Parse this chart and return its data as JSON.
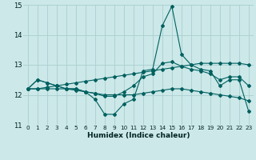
{
  "xlabel": "Humidex (Indice chaleur)",
  "xlim": [
    -0.5,
    23.5
  ],
  "ylim": [
    11,
    15
  ],
  "yticks": [
    11,
    12,
    13,
    14,
    15
  ],
  "xticks": [
    0,
    1,
    2,
    3,
    4,
    5,
    6,
    7,
    8,
    9,
    10,
    11,
    12,
    13,
    14,
    15,
    16,
    17,
    18,
    19,
    20,
    21,
    22,
    23
  ],
  "bg_color": "#cce8e8",
  "grid_color": "#aacfcf",
  "line_color": "#006060",
  "lines": [
    {
      "x": [
        0,
        1,
        2,
        3,
        4,
        5,
        6,
        7,
        8,
        9,
        10,
        11,
        12,
        13,
        14,
        15,
        16,
        17,
        18,
        19,
        20,
        21,
        22,
        23
      ],
      "y": [
        12.2,
        12.5,
        12.4,
        12.3,
        12.2,
        12.2,
        12.1,
        11.85,
        11.35,
        11.35,
        11.7,
        11.85,
        12.8,
        12.85,
        14.3,
        14.95,
        13.35,
        13.0,
        12.85,
        12.8,
        12.3,
        12.5,
        12.5,
        11.45
      ]
    },
    {
      "x": [
        0,
        1,
        2,
        3,
        4,
        5,
        6,
        7,
        8,
        9,
        10,
        11,
        12,
        13,
        14,
        15,
        16,
        17,
        18,
        19,
        20,
        21,
        22,
        23
      ],
      "y": [
        12.2,
        12.5,
        12.4,
        12.3,
        12.2,
        12.2,
        12.1,
        12.05,
        11.95,
        11.95,
        12.1,
        12.3,
        12.6,
        12.7,
        13.05,
        13.1,
        12.95,
        12.85,
        12.8,
        12.7,
        12.5,
        12.6,
        12.6,
        12.3
      ]
    },
    {
      "x": [
        0,
        1,
        2,
        3,
        4,
        5,
        6,
        7,
        8,
        9,
        10,
        11,
        12,
        13,
        14,
        15,
        16,
        17,
        18,
        19,
        20,
        21,
        22,
        23
      ],
      "y": [
        12.2,
        12.2,
        12.2,
        12.2,
        12.2,
        12.15,
        12.1,
        12.05,
        12.0,
        12.0,
        12.0,
        12.0,
        12.05,
        12.1,
        12.15,
        12.2,
        12.2,
        12.15,
        12.1,
        12.05,
        12.0,
        11.95,
        11.9,
        11.8
      ]
    },
    {
      "x": [
        0,
        1,
        2,
        3,
        4,
        5,
        6,
        7,
        8,
        9,
        10,
        11,
        12,
        13,
        14,
        15,
        16,
        17,
        18,
        19,
        20,
        21,
        22,
        23
      ],
      "y": [
        12.2,
        12.2,
        12.25,
        12.3,
        12.35,
        12.4,
        12.45,
        12.5,
        12.55,
        12.6,
        12.65,
        12.7,
        12.75,
        12.8,
        12.85,
        12.9,
        12.95,
        13.0,
        13.05,
        13.05,
        13.05,
        13.05,
        13.05,
        13.0
      ]
    }
  ]
}
